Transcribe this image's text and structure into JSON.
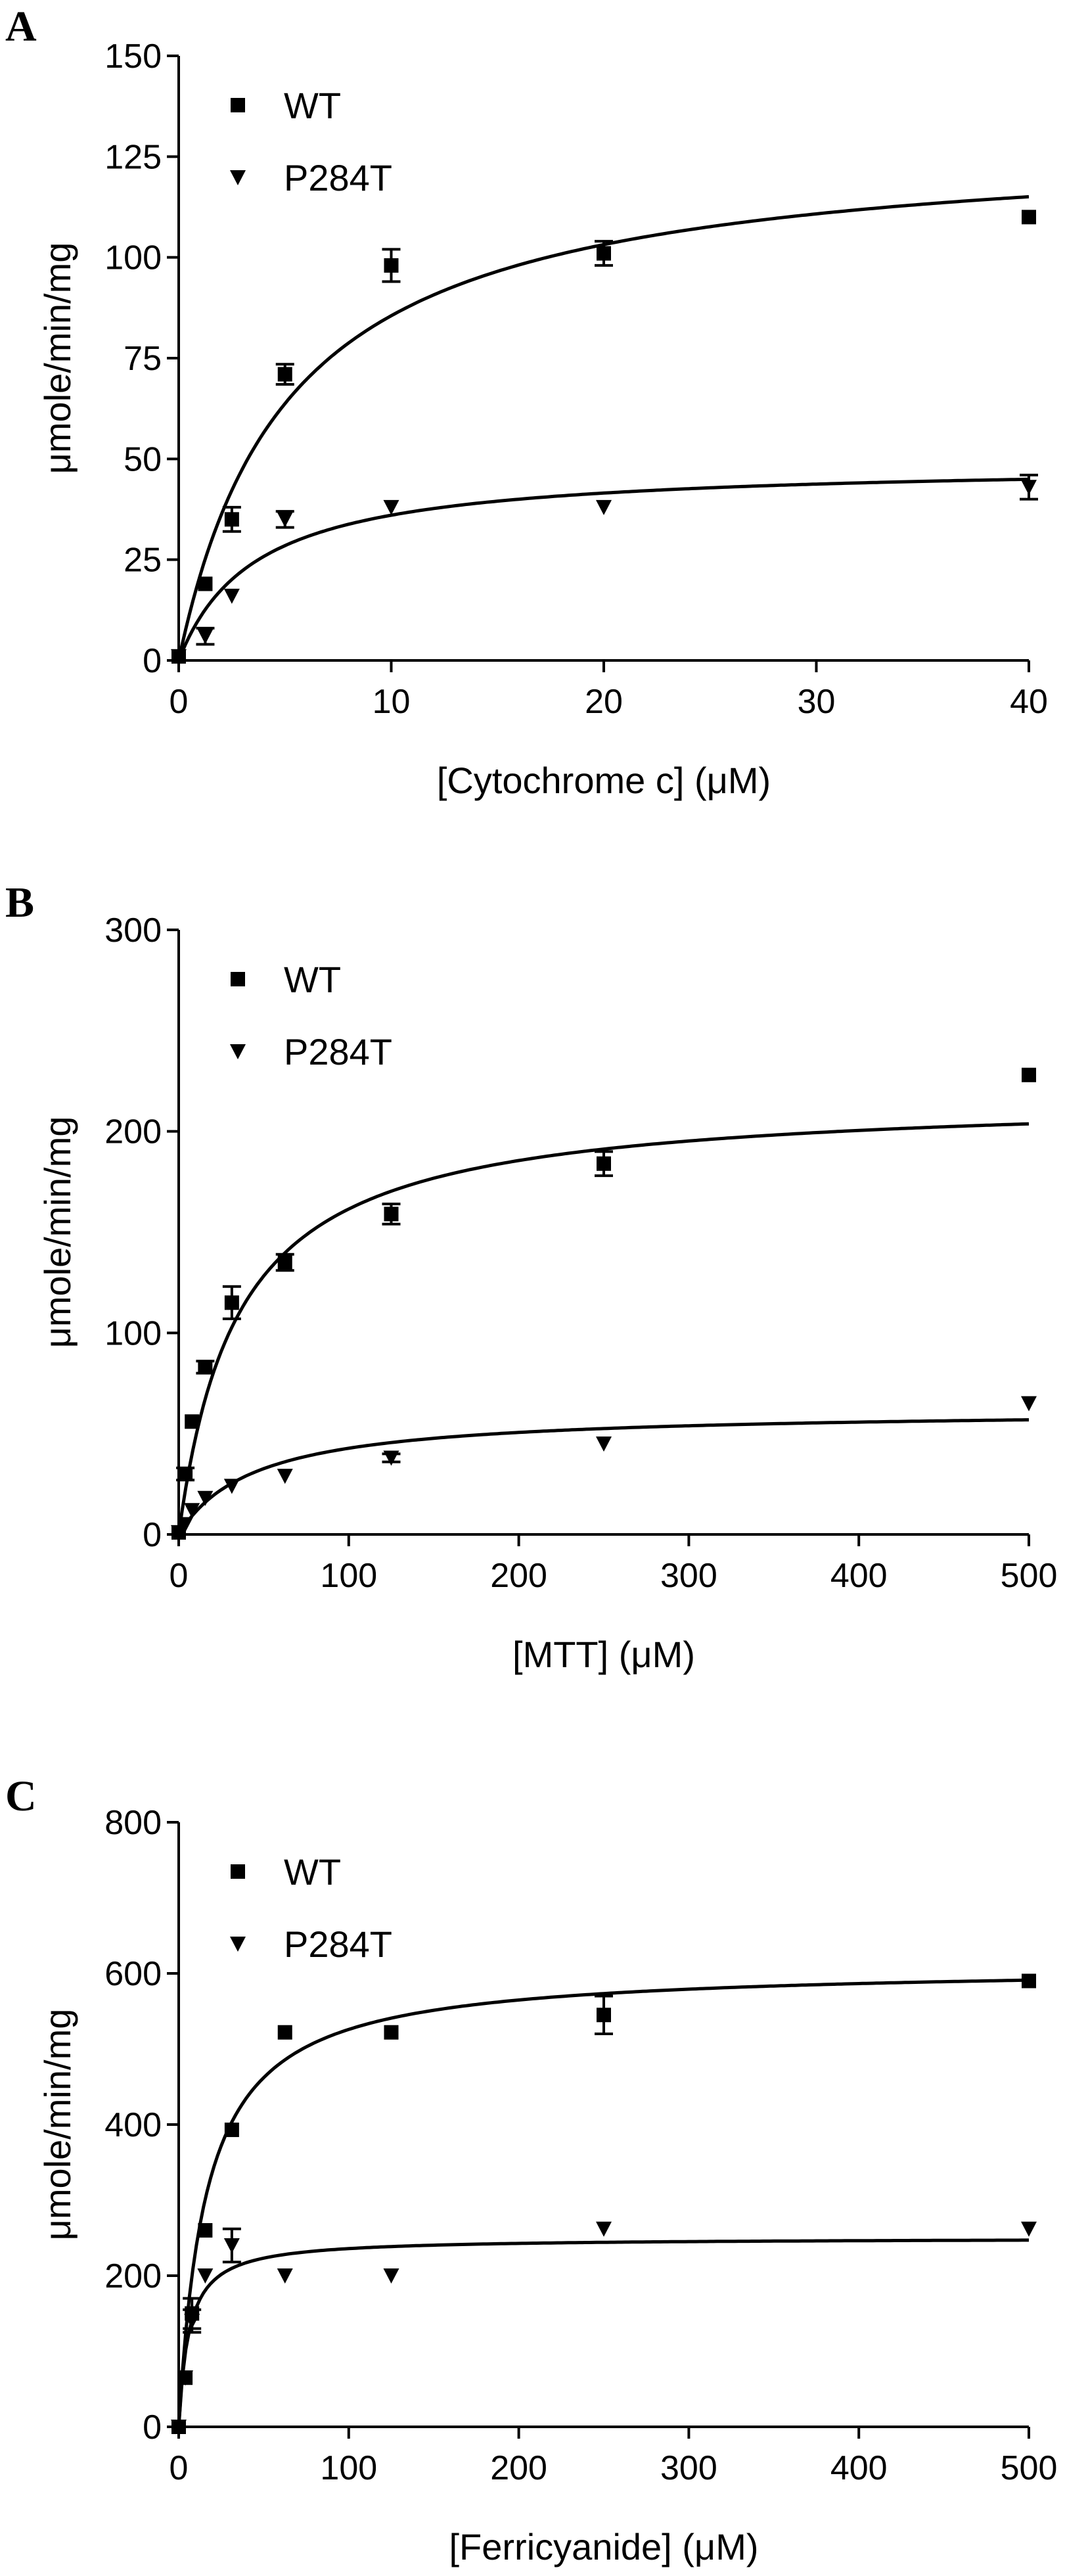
{
  "figure": {
    "panels": [
      "A",
      "B",
      "C"
    ]
  },
  "chart_data": [
    {
      "panel": "A",
      "type": "scatter",
      "xlabel": "[Cytochrome c] (μM)",
      "ylabel": "μmole/min/mg",
      "xlim": [
        0,
        40
      ],
      "ylim": [
        0,
        150
      ],
      "xticks": [
        0,
        10,
        20,
        30,
        40
      ],
      "yticks": [
        0,
        25,
        50,
        75,
        100,
        125,
        150
      ],
      "grid": false,
      "legend": "top-left",
      "series": [
        {
          "name": "WT",
          "marker": "square",
          "fit": {
            "vmax": 130,
            "km": 5.2
          },
          "x": [
            0,
            1.25,
            2.5,
            5,
            10,
            20,
            40
          ],
          "y": [
            1,
            19,
            35,
            71,
            98,
            101,
            110
          ],
          "err": [
            0,
            0,
            3,
            2.5,
            4,
            3,
            0
          ]
        },
        {
          "name": "P284T",
          "marker": "triangle-down",
          "fit": {
            "vmax": 49,
            "km": 3.6
          },
          "x": [
            0,
            1.25,
            2.5,
            5,
            10,
            20,
            40
          ],
          "y": [
            1,
            6,
            16,
            35,
            38,
            38,
            43
          ],
          "err": [
            0,
            2,
            0,
            2,
            0,
            0,
            3
          ]
        }
      ]
    },
    {
      "panel": "B",
      "type": "scatter",
      "xlabel": "[MTT] (μM)",
      "ylabel": "μmole/min/mg",
      "xlim": [
        0,
        500
      ],
      "ylim": [
        0,
        300
      ],
      "xticks": [
        0,
        100,
        200,
        300,
        400,
        500
      ],
      "yticks": [
        0,
        100,
        200,
        300
      ],
      "grid": false,
      "legend": "top-left",
      "series": [
        {
          "name": "WT",
          "marker": "square",
          "fit": {
            "vmax": 218,
            "km": 35
          },
          "x": [
            0,
            3.9,
            7.8,
            15.6,
            31.25,
            62.5,
            125,
            250,
            500
          ],
          "y": [
            1,
            30,
            56,
            83,
            115,
            135,
            159,
            184,
            228
          ],
          "err": [
            0,
            3,
            0,
            3,
            8,
            4,
            5,
            6,
            0
          ]
        },
        {
          "name": "P284T",
          "marker": "triangle-down",
          "fit": {
            "vmax": 62,
            "km": 45
          },
          "x": [
            0,
            3.9,
            7.8,
            15.6,
            31.25,
            62.5,
            125,
            250,
            500
          ],
          "y": [
            1,
            5,
            12,
            18,
            24,
            29,
            38,
            45,
            65
          ],
          "err": [
            0,
            0,
            0,
            0,
            0,
            0,
            2,
            0,
            0
          ]
        }
      ]
    },
    {
      "panel": "C",
      "type": "scatter",
      "xlabel": "[Ferricyanide] (μM)",
      "ylabel": "μmole/min/mg",
      "xlim": [
        0,
        500
      ],
      "ylim": [
        0,
        800
      ],
      "xticks": [
        0,
        100,
        200,
        300,
        400,
        500
      ],
      "yticks": [
        0,
        200,
        400,
        600,
        800
      ],
      "grid": false,
      "legend": "top-left",
      "series": [
        {
          "name": "WT",
          "marker": "square",
          "fit": {
            "vmax": 610,
            "km": 16
          },
          "x": [
            0,
            3.9,
            7.8,
            15.6,
            31.25,
            62.5,
            125,
            250,
            500
          ],
          "y": [
            0,
            65,
            150,
            260,
            393,
            522,
            522,
            545,
            590
          ],
          "err": [
            0,
            0,
            20,
            0,
            0,
            0,
            0,
            25,
            0
          ]
        },
        {
          "name": "P284T",
          "marker": "triangle-down",
          "fit": {
            "vmax": 250,
            "km": 6
          },
          "x": [
            0,
            3.9,
            7.8,
            15.6,
            31.25,
            62.5,
            125,
            250,
            500
          ],
          "y": [
            0,
            65,
            140,
            200,
            240,
            200,
            200,
            262,
            262
          ],
          "err": [
            0,
            0,
            15,
            0,
            22,
            0,
            0,
            0,
            0
          ]
        }
      ]
    }
  ]
}
